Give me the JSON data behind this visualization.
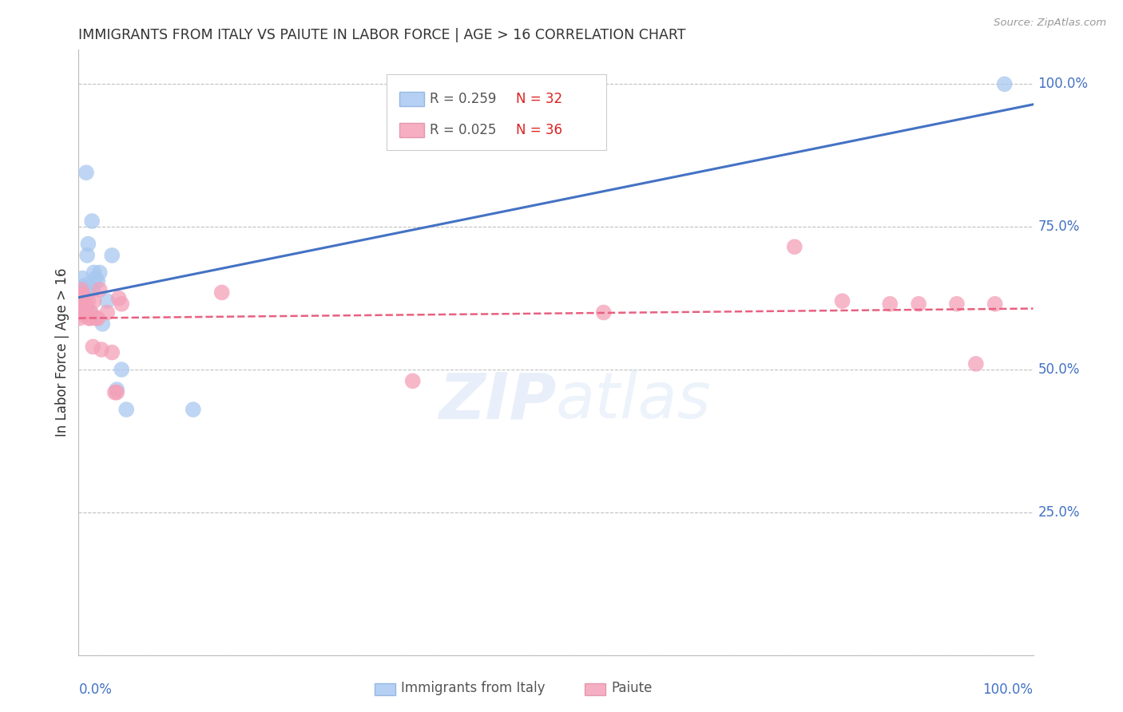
{
  "title": "IMMIGRANTS FROM ITALY VS PAIUTE IN LABOR FORCE | AGE > 16 CORRELATION CHART",
  "source": "Source: ZipAtlas.com",
  "ylabel": "In Labor Force | Age > 16",
  "watermark": "ZIPatlas",
  "legend": {
    "italy": {
      "R": 0.259,
      "N": 32,
      "color": "#a8c8f0",
      "label": "Immigrants from Italy"
    },
    "paiute": {
      "R": 0.025,
      "N": 36,
      "color": "#f4a0b8",
      "label": "Paiute"
    }
  },
  "yticks": [
    0.0,
    0.25,
    0.5,
    0.75,
    1.0
  ],
  "ytick_labels": [
    "",
    "25.0%",
    "50.0%",
    "75.0%",
    "100.0%"
  ],
  "italy_x": [
    0.001,
    0.002,
    0.002,
    0.003,
    0.003,
    0.004,
    0.004,
    0.004,
    0.005,
    0.005,
    0.006,
    0.007,
    0.008,
    0.009,
    0.01,
    0.01,
    0.011,
    0.012,
    0.014,
    0.015,
    0.016,
    0.018,
    0.02,
    0.022,
    0.025,
    0.03,
    0.035,
    0.04,
    0.045,
    0.05,
    0.12,
    0.97
  ],
  "italy_y": [
    0.635,
    0.64,
    0.645,
    0.625,
    0.64,
    0.6,
    0.645,
    0.66,
    0.62,
    0.645,
    0.63,
    0.64,
    0.845,
    0.7,
    0.72,
    0.65,
    0.64,
    0.6,
    0.76,
    0.64,
    0.67,
    0.66,
    0.655,
    0.67,
    0.58,
    0.62,
    0.7,
    0.465,
    0.5,
    0.43,
    0.43,
    1.0
  ],
  "paiute_x": [
    0.001,
    0.002,
    0.003,
    0.003,
    0.004,
    0.005,
    0.006,
    0.007,
    0.008,
    0.009,
    0.01,
    0.011,
    0.012,
    0.013,
    0.015,
    0.016,
    0.018,
    0.02,
    0.022,
    0.024,
    0.03,
    0.035,
    0.038,
    0.04,
    0.042,
    0.045,
    0.15,
    0.35,
    0.55,
    0.75,
    0.8,
    0.85,
    0.88,
    0.92,
    0.94,
    0.96
  ],
  "paiute_y": [
    0.59,
    0.61,
    0.63,
    0.64,
    0.63,
    0.63,
    0.595,
    0.61,
    0.61,
    0.6,
    0.62,
    0.59,
    0.59,
    0.6,
    0.54,
    0.62,
    0.59,
    0.59,
    0.64,
    0.535,
    0.6,
    0.53,
    0.46,
    0.46,
    0.625,
    0.615,
    0.635,
    0.48,
    0.6,
    0.715,
    0.62,
    0.615,
    0.615,
    0.615,
    0.51,
    0.615
  ],
  "italy_line_color": "#4472c4",
  "paiute_line_color": "#e86080",
  "bg_color": "#ffffff",
  "grid_color": "#c0c0c0",
  "title_color": "#333333",
  "axis_label_color": "#4472c4"
}
